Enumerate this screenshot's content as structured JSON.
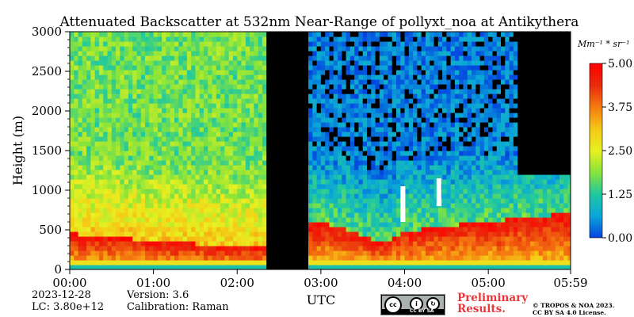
{
  "chart_data": {
    "type": "heatmap",
    "title": "Attenuated Backscatter at 532nm Near-Range of pollyxt_noa at Antikythera",
    "xlabel": "UTC",
    "ylabel": "Height (m)",
    "x_ticks": [
      "00:00",
      "01:00",
      "02:00",
      "03:00",
      "04:00",
      "05:00",
      "05:59"
    ],
    "x_tick_hours": [
      0,
      1,
      2,
      3,
      4,
      5,
      5.983
    ],
    "xlim_hours": [
      0,
      5.983
    ],
    "y_ticks": [
      0,
      500,
      1000,
      1500,
      2000,
      2500,
      3000
    ],
    "ylim": [
      0,
      3000
    ],
    "colorbar": {
      "label": "Mm⁻¹ * sr⁻¹",
      "ticks": [
        "0.00",
        "1.25",
        "2.50",
        "3.75",
        "5.00"
      ],
      "range": [
        0,
        5
      ],
      "colors": [
        "#0443e0",
        "#0aa6d8",
        "#20c8a0",
        "#88e43a",
        "#e8f020",
        "#f5c816",
        "#f57a10",
        "#e82a0c",
        "#ff0000"
      ]
    },
    "no_data_gap_hours": [
      2.33,
      2.85
    ],
    "dense_layer": [
      {
        "t": 0.0,
        "top": 460
      },
      {
        "t": 0.5,
        "top": 420
      },
      {
        "t": 1.0,
        "top": 360
      },
      {
        "t": 1.5,
        "top": 330
      },
      {
        "t": 2.0,
        "top": 300
      },
      {
        "t": 2.33,
        "top": 290
      },
      {
        "t": 2.85,
        "top": 600
      },
      {
        "t": 3.2,
        "top": 560
      },
      {
        "t": 3.5,
        "top": 420
      },
      {
        "t": 3.75,
        "top": 350
      },
      {
        "t": 4.0,
        "top": 480
      },
      {
        "t": 4.5,
        "top": 560
      },
      {
        "t": 5.0,
        "top": 600
      },
      {
        "t": 5.5,
        "top": 680
      },
      {
        "t": 5.983,
        "top": 700
      }
    ],
    "saturated_features": [
      {
        "t": 3.98,
        "h_bottom": 600,
        "h_top": 1050
      },
      {
        "t": 4.41,
        "h_bottom": 800,
        "h_top": 1150
      }
    ]
  },
  "info": {
    "date": "2023-12-28",
    "lc": "LC: 3.80e+12",
    "version": "Version: 3.6",
    "calibration": "Calibration: Raman"
  },
  "footer": {
    "preliminary_line1": "Preliminary",
    "preliminary_line2": "Results.",
    "copyright_line1": "© TROPOS & NOA 2023.",
    "copyright_line2": "CC BY SA 4.0 License.",
    "license_badge": "CC BY SA"
  }
}
